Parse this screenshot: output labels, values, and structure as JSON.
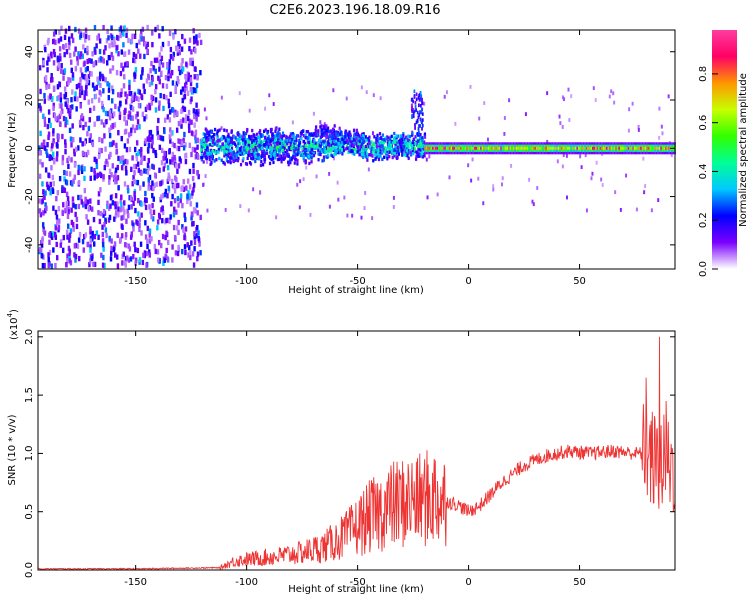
{
  "title": "C2E6.2023.196.18.09.R16",
  "chart_data": [
    {
      "type": "heatmap",
      "xlabel": "Height of straight line (km)",
      "ylabel": "Frequency (Hz)",
      "xlim": [
        -194,
        93
      ],
      "ylim": [
        -50,
        49
      ],
      "xticks": [
        -150,
        -100,
        -50,
        0,
        50
      ],
      "yticks": [
        -40,
        -20,
        0,
        20,
        40
      ],
      "colorbar": {
        "label": "Normalized spectral amplitude",
        "range": [
          0.0,
          0.98
        ],
        "ticks": [
          0.0,
          0.2,
          0.4,
          0.6,
          0.8
        ],
        "colormap": "rainbow",
        "stops": [
          "#ffffff",
          "#7b00ff",
          "#0000ff",
          "#00c8ff",
          "#00ff96",
          "#32ff00",
          "#c8ff00",
          "#ff9600",
          "#ff0064",
          "#ff3ca0"
        ]
      },
      "regions": [
        {
          "x": [
            -194,
            -121
          ],
          "y": [
            -50,
            49
          ],
          "description_level": 0.15
        },
        {
          "x": [
            -121,
            -20
          ],
          "y": [
            -8,
            8
          ],
          "description_level": 0.35
        },
        {
          "x": [
            -20,
            93
          ],
          "y": [
            -2,
            2
          ],
          "description_level": 0.9
        }
      ]
    },
    {
      "type": "line",
      "xlabel": "Height of straight line (km)",
      "ylabel": "SNR (10 * v/v)",
      "multiplier_label": "(x10",
      "multiplier_exp": "4",
      "xlim": [
        -194,
        93
      ],
      "ylim": [
        0,
        2.05
      ],
      "xticks": [
        -150,
        -100,
        -50,
        0,
        50
      ],
      "yticks": [
        0.0,
        0.5,
        1.0,
        1.5,
        2.0
      ],
      "ytick_labels": [
        "0.0",
        "0.5",
        "1.0",
        "1.5",
        "2.0"
      ],
      "color": "#ee3333",
      "series_points": [
        {
          "x": -194,
          "y": 0.01
        },
        {
          "x": -150,
          "y": 0.01
        },
        {
          "x": -112,
          "y": 0.02
        },
        {
          "x": -105,
          "y": 0.08
        },
        {
          "x": -95,
          "y": 0.1
        },
        {
          "x": -85,
          "y": 0.12
        },
        {
          "x": -75,
          "y": 0.15
        },
        {
          "x": -65,
          "y": 0.2
        },
        {
          "x": -55,
          "y": 0.3
        },
        {
          "x": -45,
          "y": 0.45
        },
        {
          "x": -35,
          "y": 0.55
        },
        {
          "x": -25,
          "y": 0.6
        },
        {
          "x": -15,
          "y": 0.62
        },
        {
          "x": -5,
          "y": 0.56
        },
        {
          "x": 0,
          "y": 0.5
        },
        {
          "x": 5,
          "y": 0.55
        },
        {
          "x": 15,
          "y": 0.75
        },
        {
          "x": 25,
          "y": 0.9
        },
        {
          "x": 35,
          "y": 0.98
        },
        {
          "x": 45,
          "y": 1.02
        },
        {
          "x": 55,
          "y": 1.0
        },
        {
          "x": 65,
          "y": 1.02
        },
        {
          "x": 75,
          "y": 1.0
        },
        {
          "x": 80,
          "y": 1.0
        },
        {
          "x": 85,
          "y": 0.9
        },
        {
          "x": 93,
          "y": 0.9
        }
      ],
      "notable_peaks": [
        {
          "x": -23,
          "y": 0.96
        },
        {
          "x": -15,
          "y": 0.94
        },
        {
          "x": 86,
          "y": 2.0
        },
        {
          "x": 80,
          "y": 1.65
        },
        {
          "x": 89,
          "y": 1.45
        }
      ]
    }
  ]
}
